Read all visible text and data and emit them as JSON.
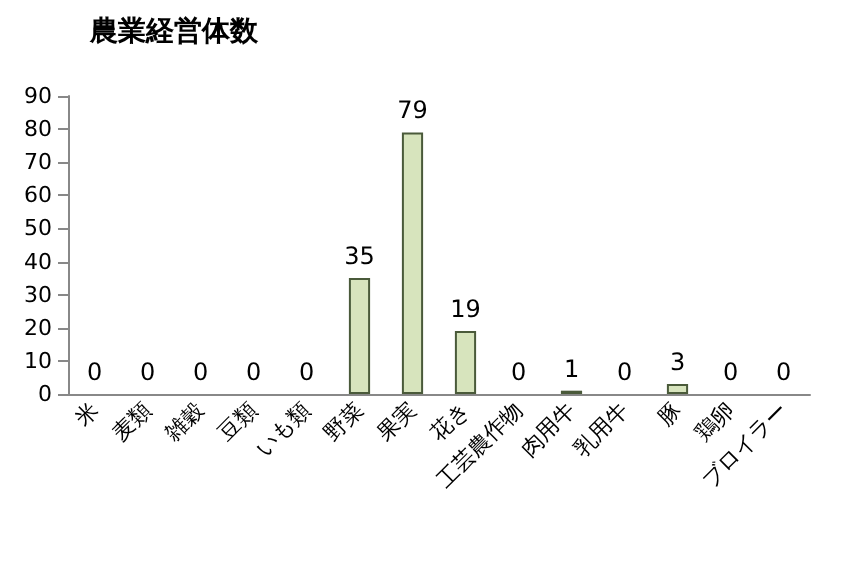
{
  "chart_data": {
    "type": "bar",
    "title": "農業経営体数",
    "categories": [
      "米",
      "麦類",
      "雑穀",
      "豆類",
      "いも類",
      "野菜",
      "果実",
      "花き",
      "工芸農作物",
      "肉用牛",
      "乳用牛",
      "豚",
      "鶏卵",
      "ブロイラー"
    ],
    "values": [
      0,
      0,
      0,
      0,
      0,
      35,
      79,
      19,
      0,
      1,
      0,
      3,
      0,
      0
    ],
    "color": "#d7e4bd",
    "ylim": [
      0,
      90
    ],
    "yticks": [
      0,
      10,
      20,
      30,
      40,
      50,
      60,
      70,
      80,
      90
    ],
    "grid": false,
    "data_labels": true
  }
}
